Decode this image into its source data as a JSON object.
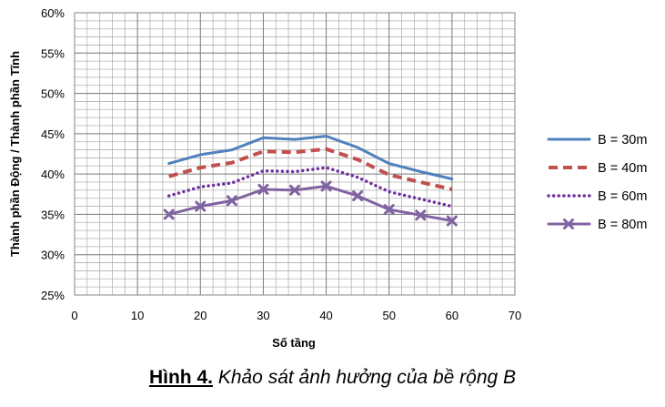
{
  "chart_data": {
    "type": "line",
    "title": "",
    "xlabel": "Số tầng",
    "ylabel": "Thành phần Động / Thành phần Tĩnh",
    "xlim": [
      0,
      70
    ],
    "ylim": [
      0.25,
      0.6
    ],
    "xticks": [
      "0",
      "10",
      "20",
      "30",
      "40",
      "50",
      "60",
      "70"
    ],
    "yticks": [
      "25%",
      "30%",
      "35%",
      "40%",
      "45%",
      "50%",
      "55%",
      "60%"
    ],
    "grid": true,
    "legend_position": "right",
    "x": [
      15,
      20,
      25,
      30,
      35,
      40,
      45,
      50,
      55,
      60
    ],
    "series": [
      {
        "name": "B = 30m",
        "color": "#4f81bd",
        "style": "solid",
        "values": [
          0.413,
          0.424,
          0.43,
          0.445,
          0.443,
          0.447,
          0.433,
          0.413,
          0.403,
          0.394
        ]
      },
      {
        "name": "B = 40m",
        "color": "#c0504d",
        "style": "dashed",
        "values": [
          0.397,
          0.408,
          0.414,
          0.428,
          0.427,
          0.431,
          0.418,
          0.399,
          0.39,
          0.381
        ]
      },
      {
        "name": "B = 60m",
        "color": "#7030a0",
        "style": "dotted",
        "values": [
          0.373,
          0.384,
          0.389,
          0.404,
          0.403,
          0.408,
          0.396,
          0.378,
          0.369,
          0.36
        ]
      },
      {
        "name": "B = 80m",
        "color": "#8064a2",
        "style": "solid-x-marker",
        "values": [
          0.35,
          0.36,
          0.367,
          0.381,
          0.38,
          0.385,
          0.373,
          0.356,
          0.349,
          0.342
        ]
      }
    ]
  },
  "caption": {
    "label": "Hình 4.",
    "text": "Khảo sát ảnh hưởng của bề rộng B"
  }
}
